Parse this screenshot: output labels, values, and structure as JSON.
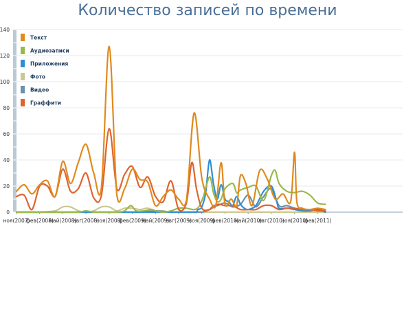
{
  "chart_data": {
    "type": "line",
    "title": "Количество записей по времени",
    "ylim": [
      0,
      140
    ],
    "yticks": [
      0,
      20,
      40,
      60,
      80,
      100,
      120,
      140
    ],
    "xlim": [
      0,
      50
    ],
    "xticks": [
      {
        "x": 0,
        "label": "ноя(2007)"
      },
      {
        "x": 3,
        "label": "фев(2008)"
      },
      {
        "x": 6,
        "label": "май(2008)"
      },
      {
        "x": 9,
        "label": "авг(2008)"
      },
      {
        "x": 12,
        "label": "ноя(2008)"
      },
      {
        "x": 15,
        "label": "фев(2009)"
      },
      {
        "x": 18,
        "label": "май(2009)"
      },
      {
        "x": 21,
        "label": "авг(2009)"
      },
      {
        "x": 24,
        "label": "ноя(2009)"
      },
      {
        "x": 27,
        "label": "фев(2010)"
      },
      {
        "x": 30,
        "label": "май(2010)"
      },
      {
        "x": 33,
        "label": "авг(2010)"
      },
      {
        "x": 36,
        "label": "ноя(2010)"
      },
      {
        "x": 39,
        "label": "фев(2011)"
      }
    ],
    "grid": true,
    "legend_position": "top-left",
    "series": [
      {
        "name": "Текст",
        "color": "#e08a1e",
        "x": [
          0,
          1,
          2,
          3,
          4,
          5,
          6,
          7,
          8,
          9,
          10,
          11,
          12,
          13,
          14,
          15,
          16,
          17,
          18,
          19,
          20,
          21,
          22,
          23,
          24,
          25,
          25.8,
          26.5,
          27,
          27.8,
          28.5,
          29,
          29.7,
          30.5,
          31.5,
          32.5,
          33.5,
          34.5,
          35.5,
          36,
          36.3,
          37,
          38,
          39,
          40
        ],
        "y": [
          16,
          21,
          14,
          21,
          24,
          12,
          39,
          22,
          38,
          52,
          30,
          19,
          127,
          13,
          18,
          33,
          25,
          23,
          5,
          12,
          17,
          10,
          9,
          76,
          26,
          10,
          5,
          38,
          6,
          10,
          5,
          28,
          22,
          5,
          32,
          25,
          10,
          14,
          8,
          46,
          8,
          3,
          2,
          3,
          2
        ]
      },
      {
        "name": "Аудиозаписи",
        "color": "#9ab84a",
        "x": [
          0,
          2,
          4,
          6,
          8,
          9,
          10,
          11,
          12,
          13,
          14,
          14.8,
          15.5,
          16.5,
          17.5,
          18,
          19,
          20,
          21,
          22,
          23,
          23.6,
          24.2,
          25,
          25.5,
          26,
          26.5,
          27,
          28,
          28.5,
          29,
          30,
          31,
          32,
          33,
          33.5,
          34,
          35,
          36,
          37,
          38,
          39,
          40
        ],
        "y": [
          0,
          0,
          0,
          0,
          0,
          1,
          0,
          0,
          0,
          0,
          1,
          5,
          1,
          1,
          2,
          1,
          0,
          1,
          3,
          3,
          2,
          4,
          12,
          27,
          15,
          8,
          10,
          18,
          22,
          15,
          17,
          19,
          20,
          9,
          28,
          32,
          22,
          16,
          15,
          16,
          13,
          7,
          6
        ]
      },
      {
        "name": "Приложения",
        "color": "#2e8fd0",
        "x": [
          0,
          4,
          8,
          12,
          16,
          20,
          23,
          23.5,
          24,
          24.5,
          25,
          25.5,
          26,
          26.5,
          27,
          27.5,
          28,
          28.5,
          29,
          29.5,
          30,
          31,
          32,
          33,
          33.7,
          34,
          35,
          36,
          37,
          38,
          39,
          40
        ],
        "y": [
          0,
          0,
          0,
          0,
          0,
          0,
          0,
          2,
          4,
          15,
          40,
          22,
          10,
          21,
          10,
          8,
          5,
          12,
          6,
          3,
          2,
          5,
          16,
          20,
          8,
          3,
          3,
          2,
          1,
          1,
          2,
          0
        ]
      },
      {
        "name": "Фото",
        "color": "#c8c890",
        "x": [
          0,
          2,
          3,
          5,
          6,
          7,
          8,
          9,
          10,
          11,
          12,
          13,
          14,
          15,
          16,
          17,
          18,
          19,
          20,
          22,
          24,
          26,
          28,
          30,
          32,
          34,
          36,
          38,
          40
        ],
        "y": [
          0,
          0,
          0,
          1,
          4,
          4,
          1,
          0,
          1,
          4,
          4,
          1,
          3,
          3,
          2,
          3,
          1,
          1,
          0,
          0,
          0,
          0,
          0,
          0,
          0,
          0,
          0,
          0,
          0
        ]
      },
      {
        "name": "Видео",
        "color": "#6b8fb0",
        "x": [
          0,
          4,
          8,
          12,
          16,
          18,
          20,
          22,
          23,
          24,
          25,
          25.5,
          26,
          27,
          28,
          29,
          30,
          31,
          32,
          33,
          34,
          35,
          36,
          37,
          38,
          39,
          40
        ],
        "y": [
          0,
          0,
          0,
          0,
          0,
          1,
          0,
          0,
          0,
          0,
          2,
          5,
          5,
          7,
          4,
          6,
          13,
          4,
          12,
          18,
          5,
          5,
          3,
          2,
          2,
          2,
          1
        ]
      },
      {
        "name": "Граффити",
        "color": "#e0632e",
        "x": [
          0,
          1,
          2,
          3,
          4,
          5,
          6,
          7,
          8,
          9,
          10,
          11,
          12,
          13,
          14,
          15,
          16,
          17,
          18,
          19,
          20,
          21,
          22,
          22.7,
          23.3,
          24,
          25,
          26,
          27,
          28,
          29,
          30,
          31,
          32,
          33,
          34,
          35,
          36,
          37,
          38,
          39,
          40
        ],
        "y": [
          12,
          13,
          2,
          20,
          20,
          12,
          33,
          16,
          18,
          30,
          11,
          13,
          64,
          18,
          29,
          35,
          19,
          27,
          12,
          8,
          24,
          2,
          7,
          38,
          18,
          3,
          2,
          6,
          5,
          5,
          2,
          2,
          2,
          5,
          5,
          2,
          3,
          3,
          2,
          2,
          1,
          1
        ]
      }
    ]
  }
}
